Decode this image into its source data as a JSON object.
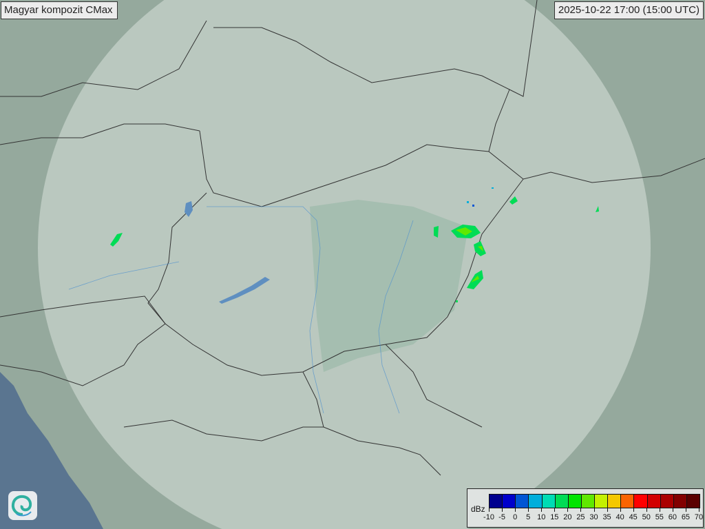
{
  "title": "Magyar kompozit  CMax",
  "timestamp": "2025-10-22 17:00 (15:00 UTC)",
  "logo": "omsz-swirl-logo",
  "legend": {
    "unit": "dBz",
    "labels": [
      "-10",
      "-5",
      "0",
      "5",
      "10",
      "15",
      "20",
      "25",
      "30",
      "35",
      "40",
      "45",
      "50",
      "55",
      "60",
      "65",
      "70"
    ],
    "colors": [
      "#00008e",
      "#0000cc",
      "#0055d4",
      "#00aedb",
      "#00dcb4",
      "#00dc55",
      "#00e400",
      "#60e800",
      "#c4f000",
      "#f4c800",
      "#fa6400",
      "#ff0000",
      "#d20000",
      "#aa0000",
      "#820000",
      "#5a0000"
    ]
  },
  "colors": {
    "coverage": "#e6eee8",
    "sea": "#5a7590",
    "border": "#333333",
    "river": "#4a8fd0"
  }
}
